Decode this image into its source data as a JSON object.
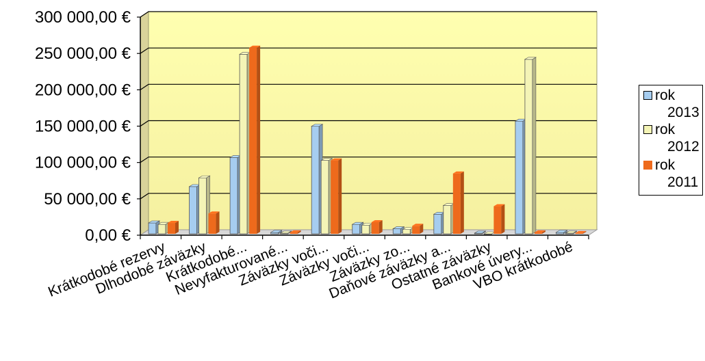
{
  "chart_data": {
    "type": "bar",
    "title": "",
    "xlabel": "",
    "ylabel": "",
    "ylim": [
      0,
      300000
    ],
    "yticks": [
      "0,00 €",
      "50 000,00 €",
      "100 000,00 €",
      "150 000,00 €",
      "200 000,00 €",
      "250 000,00 €",
      "300 000,00 €"
    ],
    "grid": true,
    "legend_position": "right",
    "categories": [
      "Krátkodobé rezervy",
      "Dlhodobé záväzky",
      "Krátkodobé...",
      "Nevyfakturované...",
      "Záväzky voči...",
      "Záväzky voči...",
      "Záväzky zo...",
      "Daňové záväzky a...",
      "Ostatné záväzky",
      "Bankové úvery...",
      "VBO krátkodobé"
    ],
    "series": [
      {
        "name": "rok 2013",
        "name_lines": [
          "rok",
          "2013"
        ],
        "color": "#a6cdf0",
        "values": [
          15000,
          65000,
          105000,
          2000,
          148000,
          13000,
          7000,
          27000,
          1000,
          155000,
          2000
        ]
      },
      {
        "name": "rok 2012",
        "name_lines": [
          "rok",
          "2012"
        ],
        "color": "#f4f4b6",
        "values": [
          13000,
          77000,
          247000,
          1000,
          101000,
          12000,
          6000,
          39000,
          0,
          240000,
          1000
        ]
      },
      {
        "name": "rok 2011",
        "name_lines": [
          "rok",
          "2011"
        ],
        "color": "#ee6a1c",
        "values": [
          15000,
          28000,
          256000,
          2000,
          101000,
          16000,
          11000,
          83000,
          38000,
          2000,
          1000
        ]
      }
    ]
  }
}
